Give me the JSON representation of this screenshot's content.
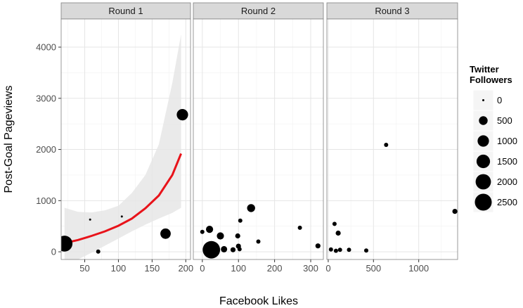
{
  "chart_data": {
    "type": "scatter",
    "xlabel": "Facebook Likes",
    "ylabel": "Post-Goal Pageviews",
    "ylim": [
      -150,
      4550
    ],
    "y_ticks": [
      0,
      1000,
      2000,
      3000,
      4000
    ],
    "grid": true,
    "facets": [
      {
        "label": "Round 1",
        "xlim": [
          15,
          207
        ],
        "x_ticks": [
          50,
          100,
          150,
          200
        ],
        "points": [
          {
            "x": 20,
            "y": 160,
            "size": 2200
          },
          {
            "x": 58,
            "y": 630,
            "size": 0
          },
          {
            "x": 70,
            "y": 5,
            "size": 50
          },
          {
            "x": 105,
            "y": 690,
            "size": 0
          },
          {
            "x": 170,
            "y": 355,
            "size": 800
          },
          {
            "x": 195,
            "y": 2680,
            "size": 1000
          }
        ],
        "fit": {
          "color": "#e8131a",
          "x": [
            20,
            40,
            60,
            80,
            100,
            120,
            140,
            160,
            180,
            193
          ],
          "y": [
            170,
            230,
            310,
            400,
            510,
            650,
            850,
            1100,
            1500,
            1920
          ],
          "ci_low": [
            -270,
            -150,
            -20,
            120,
            260,
            400,
            530,
            650,
            760,
            860
          ],
          "ci_high": [
            860,
            780,
            770,
            810,
            900,
            1150,
            1500,
            2100,
            3300,
            4250
          ]
        }
      },
      {
        "label": "Round 2",
        "xlim": [
          -25,
          335
        ],
        "x_ticks": [
          0,
          100,
          200,
          300
        ],
        "points": [
          {
            "x": 0,
            "y": 390,
            "size": 50
          },
          {
            "x": 20,
            "y": 440,
            "size": 300
          },
          {
            "x": 25,
            "y": 40,
            "size": 2700
          },
          {
            "x": 50,
            "y": 310,
            "size": 300
          },
          {
            "x": 60,
            "y": 50,
            "size": 200
          },
          {
            "x": 85,
            "y": 40,
            "size": 100
          },
          {
            "x": 98,
            "y": 310,
            "size": 100
          },
          {
            "x": 100,
            "y": 110,
            "size": 100
          },
          {
            "x": 103,
            "y": 50,
            "size": 50
          },
          {
            "x": 105,
            "y": 610,
            "size": 50
          },
          {
            "x": 135,
            "y": 855,
            "size": 400
          },
          {
            "x": 155,
            "y": 200,
            "size": 50
          },
          {
            "x": 270,
            "y": 470,
            "size": 50
          },
          {
            "x": 320,
            "y": 115,
            "size": 100
          }
        ]
      },
      {
        "label": "Round 3",
        "xlim": [
          -15,
          1430
        ],
        "x_ticks": [
          0,
          500,
          1000
        ],
        "points": [
          {
            "x": 30,
            "y": 45,
            "size": 50
          },
          {
            "x": 70,
            "y": 545,
            "size": 50
          },
          {
            "x": 85,
            "y": 20,
            "size": 50
          },
          {
            "x": 110,
            "y": 365,
            "size": 100
          },
          {
            "x": 130,
            "y": 40,
            "size": 50
          },
          {
            "x": 230,
            "y": 40,
            "size": 50
          },
          {
            "x": 420,
            "y": 25,
            "size": 50
          },
          {
            "x": 640,
            "y": 2090,
            "size": 50
          },
          {
            "x": 1400,
            "y": 790,
            "size": 100
          }
        ]
      }
    ],
    "legend": {
      "title": "Twitter\nFollowers",
      "placement": "right",
      "items": [
        {
          "label": "0",
          "size": 0
        },
        {
          "label": "500",
          "size": 500
        },
        {
          "label": "1000",
          "size": 1000
        },
        {
          "label": "1500",
          "size": 1500
        },
        {
          "label": "2000",
          "size": 2000
        },
        {
          "label": "2500",
          "size": 2500
        }
      ]
    },
    "colors": {
      "panel_bg": "#ffffff",
      "grid_major": "#e5e5e5",
      "grid_minor": "#f2f2f2",
      "strip_bg": "#d9d9d9",
      "border": "#7f7f7f",
      "point": "#000000",
      "ribbon": "#e6e6e6"
    }
  }
}
